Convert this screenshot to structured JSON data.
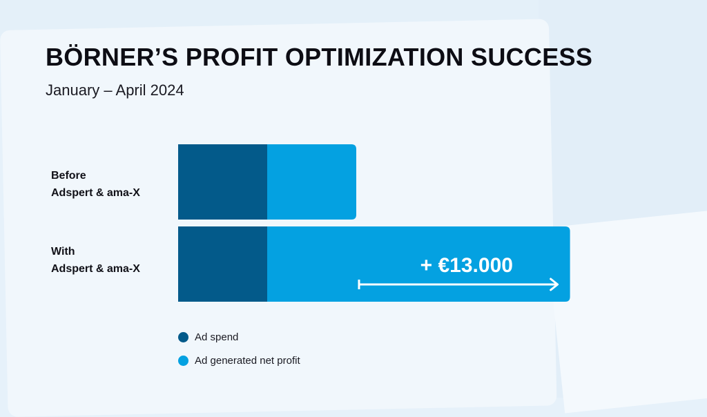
{
  "colors": {
    "ad_spend": "#035a8a",
    "net_profit": "#04a1e1",
    "annotation": "#ffffff"
  },
  "chart_data": {
    "type": "bar",
    "orientation": "horizontal",
    "stacked": true,
    "title": "BÖRNER’S PROFIT OPTIMIZATION SUCCESS",
    "subtitle": "January – April 2024",
    "categories": [
      {
        "line1": "Before",
        "line2": "Adspert & ama-X"
      },
      {
        "line1": "With",
        "line2": "Adspert & ama-X"
      }
    ],
    "series": [
      {
        "name": "Ad spend",
        "values": [
          1,
          1
        ]
      },
      {
        "name": "Ad generated net profit",
        "values": [
          1,
          3.4
        ]
      }
    ],
    "annotation": {
      "text": "+ €13.000",
      "category_index": 1,
      "arrow": "right"
    },
    "axes_visible": false,
    "grid": false,
    "legend_position": "bottom-left"
  }
}
